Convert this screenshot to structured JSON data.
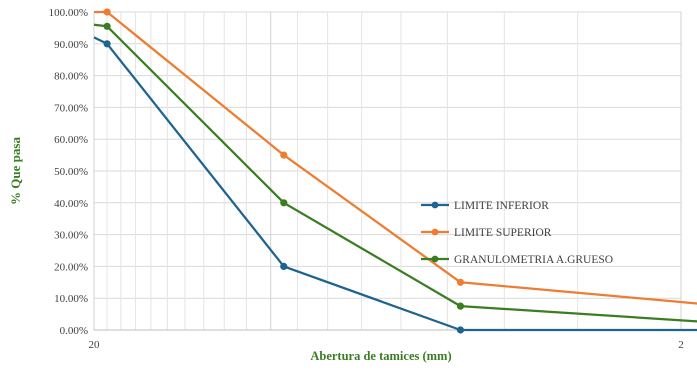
{
  "chart_data": {
    "type": "line",
    "x_scale": "log",
    "x_reversed": true,
    "xlim": [
      20,
      2
    ],
    "x_tick_labels": [
      "20",
      "2"
    ],
    "ylim": [
      0,
      100
    ],
    "y_tick_labels": [
      "0.00%",
      "10.00%",
      "20.00%",
      "30.00%",
      "40.00%",
      "50.00%",
      "60.00%",
      "70.00%",
      "80.00%",
      "90.00%",
      "100.00%"
    ],
    "xlabel": "Abertura de tamices (mm)",
    "ylabel": "% Que pasa",
    "grid": true,
    "legend_position": "right",
    "series": [
      {
        "name": "LIMITE INFERIOR",
        "color": "#1f6391",
        "x": [
          19,
          9.5,
          4.75,
          1.18
        ],
        "y": [
          90,
          20,
          0,
          0
        ],
        "y_line_start": 92
      },
      {
        "name": "LIMITE SUPERIOR",
        "color": "#ed7d31",
        "x": [
          19,
          9.5,
          4.75,
          1.18
        ],
        "y": [
          100,
          55,
          15,
          5
        ],
        "y_line_start": 100
      },
      {
        "name": "GRANULOMETRIA A.GRUESO",
        "color": "#3a7d22",
        "x": [
          19,
          9.5,
          4.75,
          1.18
        ],
        "y": [
          95.5,
          40,
          7.5,
          0.3
        ],
        "y_line_start": 96
      }
    ]
  }
}
